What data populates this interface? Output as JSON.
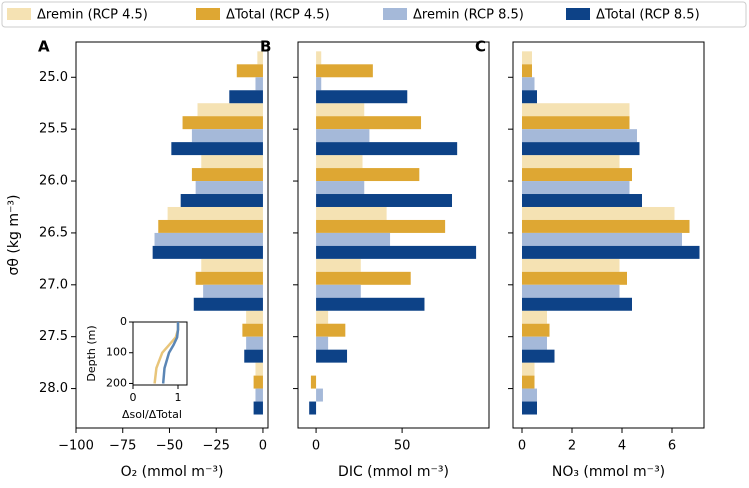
{
  "chart_data": [
    {
      "type": "hbar",
      "panel": "A",
      "xlabel": "O₂ (mmol m⁻³)",
      "ylabel": "σθ (kg m⁻³)",
      "y": [
        25.0,
        25.5,
        26.0,
        26.5,
        27.0,
        27.5,
        28.0
      ],
      "ylim": [
        24.66,
        28.38
      ],
      "yticks": [
        {
          "value": 25.0,
          "label": "25.0"
        },
        25.5,
        {
          "value": 26.0,
          "label": "26.0"
        },
        26.5,
        {
          "value": 27.0,
          "label": "27.0"
        },
        27.5,
        {
          "value": 28.0,
          "label": "28.0"
        }
      ],
      "xlim": [
        -100,
        2.7
      ],
      "xticks": [
        {
          "value": -100,
          "label": "−100"
        },
        {
          "value": -75,
          "label": "−75"
        },
        {
          "value": -50,
          "label": "−50"
        },
        {
          "value": -25,
          "label": "−25"
        },
        0
      ],
      "series": [
        {
          "name": "Δremin (RCP 4.5)",
          "color": "#f5e2b3",
          "values": [
            -3,
            -35,
            -33,
            -51,
            -33,
            -9,
            -4
          ]
        },
        {
          "name": "ΔTotal (RCP 4.5)",
          "color": "#dea733",
          "values": [
            -14,
            -43,
            -38,
            -56,
            -36,
            -11,
            -5
          ]
        },
        {
          "name": "Δremin (RCP 8.5)",
          "color": "#a5b9d9",
          "values": [
            -4,
            -38,
            -36,
            -58,
            -32,
            -9,
            -4
          ]
        },
        {
          "name": "ΔTotal (RCP 8.5)",
          "color": "#0d4287",
          "values": [
            -18,
            -49,
            -44,
            -59,
            -37,
            -10,
            -5
          ]
        }
      ]
    },
    {
      "type": "hbar",
      "panel": "B",
      "xlabel": "DIC  (mmol m⁻³)",
      "xlim": [
        -10.5,
        100.5
      ],
      "xticks": [
        0,
        50
      ],
      "series": [
        {
          "values": [
            3,
            28,
            27,
            41,
            26,
            7,
            0
          ]
        },
        {
          "values": [
            33,
            61,
            60,
            75,
            55,
            17,
            -3
          ]
        },
        {
          "values": [
            3,
            31,
            28,
            43,
            26,
            7,
            4
          ]
        },
        {
          "values": [
            53,
            82,
            79,
            93,
            63,
            18,
            -4
          ]
        }
      ]
    },
    {
      "type": "hbar",
      "panel": "C",
      "xlabel": "NO₃ (mmol m⁻³)",
      "xlim": [
        -0.36,
        7.28
      ],
      "xticks": [
        0,
        2,
        4,
        6
      ],
      "series": [
        {
          "values": [
            0.4,
            4.3,
            3.9,
            6.1,
            3.9,
            1.0,
            0.5
          ]
        },
        {
          "values": [
            0.4,
            4.3,
            4.4,
            6.7,
            4.2,
            1.1,
            0.5
          ]
        },
        {
          "values": [
            0.5,
            4.6,
            4.3,
            6.4,
            3.9,
            1.0,
            0.6
          ]
        },
        {
          "values": [
            0.6,
            4.7,
            4.8,
            7.1,
            4.4,
            1.3,
            0.6
          ]
        }
      ]
    },
    {
      "type": "line",
      "xlabel": "Δsol/ΔTotal",
      "ylabel": "Depth (m)",
      "depth": [
        0,
        25,
        50,
        75,
        100,
        150,
        200
      ],
      "xlim": [
        0,
        1.2
      ],
      "xticks": [
        0,
        1
      ],
      "ylim": [
        0,
        205
      ],
      "yticks": [
        0,
        100,
        200
      ],
      "series": [
        {
          "color": "#e8c57a",
          "values": [
            1.0,
            1.0,
            0.95,
            0.8,
            0.65,
            0.52,
            0.48
          ]
        },
        {
          "color": "#5b86b5",
          "values": [
            1.0,
            1.0,
            0.98,
            0.9,
            0.8,
            0.7,
            0.67
          ]
        }
      ]
    }
  ]
}
